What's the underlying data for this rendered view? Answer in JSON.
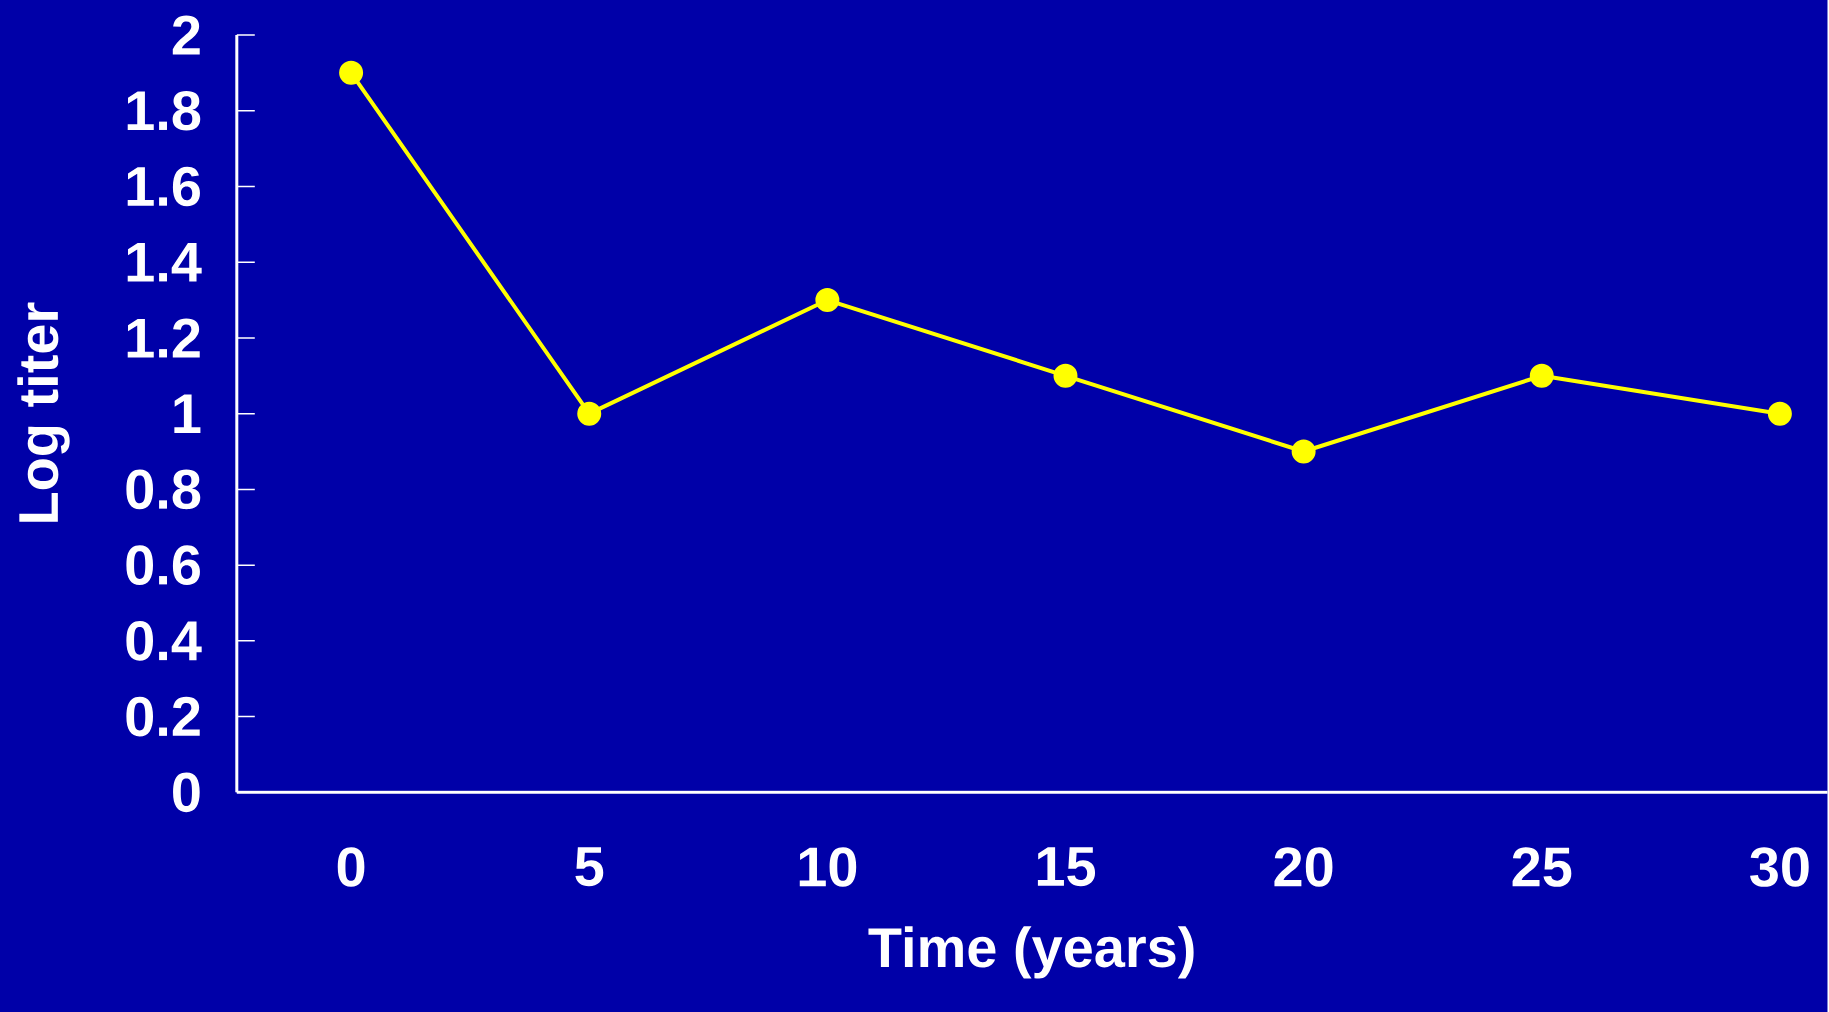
{
  "chart_data": {
    "type": "line",
    "xlabel": "Time (years)",
    "ylabel": "Log titer",
    "categories": [
      "0",
      "5",
      "10",
      "15",
      "20",
      "25",
      "30"
    ],
    "values": [
      1.9,
      1.0,
      1.3,
      1.1,
      0.9,
      1.1,
      1.0
    ],
    "color": "#ffff00",
    "marker": "circle",
    "line_style": "solid",
    "ylim": [
      0,
      2
    ],
    "yticks": [
      0,
      0.2,
      0.4,
      0.6,
      0.8,
      1,
      1.2,
      1.4,
      1.6,
      1.8,
      2
    ]
  }
}
